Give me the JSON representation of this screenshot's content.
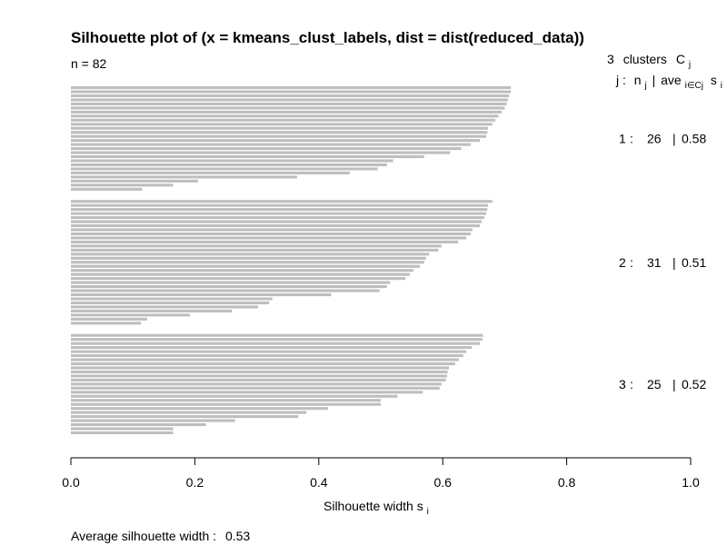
{
  "chart_data": {
    "type": "bar",
    "orientation": "horizontal",
    "title": "Silhouette plot of (x = kmeans_clust_labels, dist = dist(reduced_data))",
    "n_label": "n = 82",
    "header": {
      "count": "3",
      "clusters_word": "clusters",
      "c_symbol": "C",
      "c_sub": "j",
      "j_prefix": "j :",
      "n_symbol": "n",
      "n_sub": "j",
      "sep": "|",
      "ave_word": "ave",
      "ave_sub": "i∈Cj",
      "s_symbol": "s",
      "s_sub": "i"
    },
    "xlabel_main": "Silhouette width s",
    "xlabel_sub": "i",
    "xlim": [
      0,
      1
    ],
    "xticks": [
      "0.0",
      "0.2",
      "0.4",
      "0.6",
      "0.8",
      "1.0"
    ],
    "footer_label": "Average silhouette width :",
    "footer_value": "0.53",
    "bar_color": "#bebebe",
    "clusters": [
      {
        "id": "1",
        "n": "26",
        "avg": "0.58",
        "values": [
          0.71,
          0.71,
          0.707,
          0.705,
          0.703,
          0.7,
          0.695,
          0.69,
          0.685,
          0.68,
          0.673,
          0.672,
          0.67,
          0.66,
          0.645,
          0.63,
          0.612,
          0.57,
          0.52,
          0.51,
          0.495,
          0.45,
          0.365,
          0.205,
          0.165,
          0.115
        ]
      },
      {
        "id": "2",
        "n": "31",
        "avg": "0.51",
        "values": [
          0.68,
          0.673,
          0.672,
          0.67,
          0.667,
          0.663,
          0.66,
          0.648,
          0.645,
          0.638,
          0.625,
          0.598,
          0.593,
          0.578,
          0.573,
          0.57,
          0.563,
          0.553,
          0.547,
          0.54,
          0.515,
          0.51,
          0.498,
          0.42,
          0.325,
          0.32,
          0.302,
          0.26,
          0.192,
          0.123,
          0.113
        ]
      },
      {
        "id": "3",
        "n": "25",
        "avg": "0.52",
        "values": [
          0.665,
          0.664,
          0.66,
          0.647,
          0.638,
          0.633,
          0.626,
          0.62,
          0.61,
          0.608,
          0.607,
          0.605,
          0.598,
          0.595,
          0.568,
          0.527,
          0.5,
          0.5,
          0.415,
          0.38,
          0.367,
          0.265,
          0.218,
          0.165,
          0.165
        ]
      }
    ]
  }
}
